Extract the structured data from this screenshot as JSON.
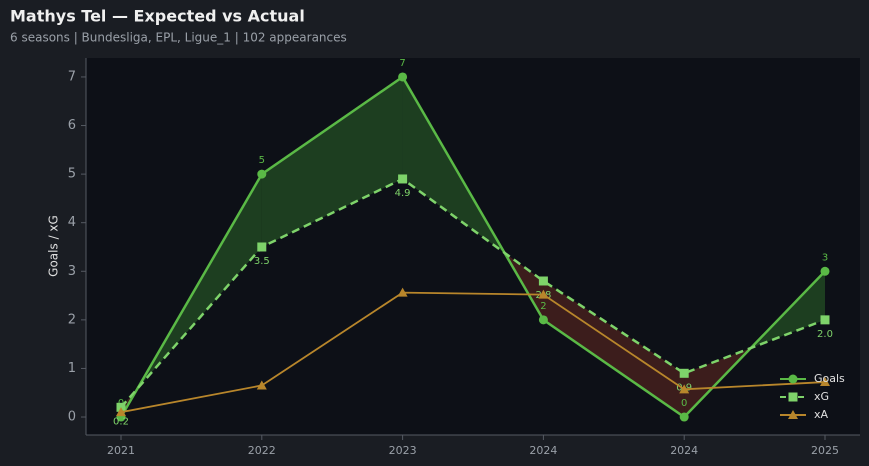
{
  "chart_data": {
    "type": "line",
    "title": "Mathys Tel — Expected vs Actual",
    "subtitle": "6 seasons | Bundesliga, EPL, Ligue_1 | 102 appearances",
    "y_label": "Goals / xG",
    "categories": [
      "2021",
      "2022",
      "2023",
      "2024",
      "2024",
      "2025"
    ],
    "series": [
      {
        "name": "Goals",
        "color": "#5ab946",
        "marker": "circle",
        "linestyle": "solid",
        "values": [
          0,
          5,
          7,
          2,
          0,
          3
        ],
        "value_labels": [
          "0",
          "5",
          "7",
          "2",
          "0",
          "3"
        ]
      },
      {
        "name": "xG",
        "color": "#7ed36a",
        "marker": "square",
        "linestyle": "dashed",
        "values": [
          0.2,
          3.5,
          4.9,
          2.8,
          0.9,
          2.0
        ],
        "value_labels": [
          "0.2",
          "3.5",
          "4.9",
          "2.8",
          "0.9",
          "2.0"
        ]
      },
      {
        "name": "xA",
        "color": "#b8862b",
        "marker": "triangle",
        "linestyle": "solid",
        "values": [
          0.1,
          0.65,
          2.56,
          2.52,
          0.57,
          0.72
        ]
      }
    ],
    "fill_between": {
      "above_color": "#2e6b2a",
      "below_color": "#6b2a22"
    },
    "ylim": [
      -0.37,
      7.39
    ],
    "yticks": [
      0,
      1,
      2,
      3,
      4,
      5,
      6,
      7
    ],
    "legend": "lower right"
  }
}
